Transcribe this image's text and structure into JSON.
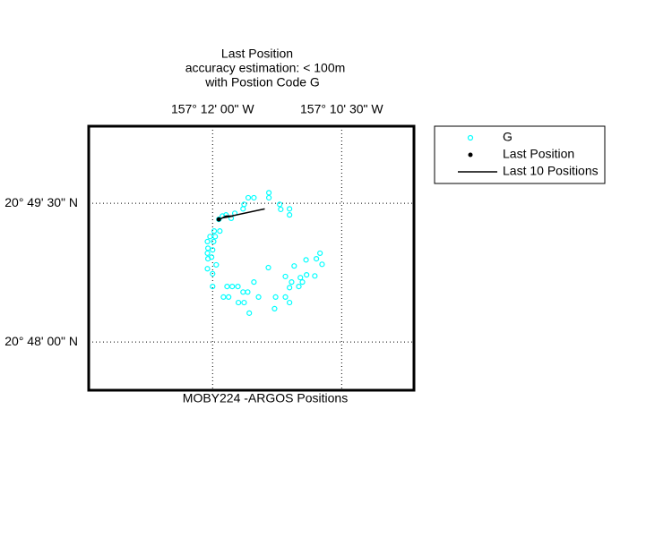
{
  "chart_data": {
    "type": "scatter",
    "title": [
      "Last Position",
      "accuracy estimation: < 100m",
      "with Postion Code G"
    ],
    "xlabel": "MOBY224 -ARGOS Positions",
    "xlim": [
      -157.224,
      -157.161
    ],
    "ylim": [
      20.7913,
      20.8389
    ],
    "xticks": [
      {
        "value": -157.2,
        "label": "157° 12' 00\" W"
      },
      {
        "value": -157.175,
        "label": "157° 10' 30\" W"
      }
    ],
    "yticks": [
      {
        "value": 20.825,
        "label": "20° 49' 30\" N"
      },
      {
        "value": 20.8,
        "label": "20° 48' 00\" N"
      }
    ],
    "grid": true,
    "legend": "outside-right",
    "series": [
      {
        "name": "G",
        "color": "#00ffff",
        "marker": "circle",
        "x": [
          -157.1891,
          -157.1891,
          -157.192,
          -157.1931,
          -157.1939,
          -157.1941,
          -157.187,
          -157.1868,
          -157.1851,
          -157.1851,
          -157.1957,
          -157.1964,
          -157.1974,
          -157.1981,
          -157.1988,
          -157.1997,
          -157.1986,
          -157.2005,
          -157.1995,
          -157.201,
          -157.1998,
          -157.2009,
          -157.2,
          -157.201,
          -157.2009,
          -157.2002,
          -157.1993,
          -157.201,
          -157.2,
          -157.2,
          -157.1972,
          -157.1962,
          -157.1951,
          -157.1941,
          -157.1932,
          -157.192,
          -157.1979,
          -157.1969,
          -157.195,
          -157.1939,
          -157.1911,
          -157.1929,
          -157.1878,
          -157.188,
          -157.1859,
          -157.1851,
          -157.1892,
          -157.1859,
          -157.1847,
          -157.1851,
          -157.1833,
          -157.1826,
          -157.1819,
          -157.1842,
          -157.183,
          -157.1818,
          -157.1802,
          -157.1799,
          -157.1792,
          -157.1788
        ],
        "y": [
          20.8269,
          20.826,
          20.826,
          20.826,
          20.8248,
          20.824,
          20.8248,
          20.8239,
          20.824,
          20.8229,
          20.8232,
          20.8223,
          20.8229,
          20.8227,
          20.8221,
          20.82,
          20.82,
          20.819,
          20.819,
          20.8181,
          20.8181,
          20.8169,
          20.8166,
          20.816,
          20.815,
          20.8153,
          20.8139,
          20.8132,
          20.8123,
          20.81,
          20.81,
          20.81,
          20.81,
          20.809,
          20.809,
          20.8108,
          20.8081,
          20.8081,
          20.8071,
          20.8071,
          20.8081,
          20.8052,
          20.8081,
          20.806,
          20.8081,
          20.8071,
          20.8134,
          20.8118,
          20.8108,
          20.8098,
          20.81,
          20.8108,
          20.8148,
          20.8137,
          20.8116,
          20.8121,
          20.8119,
          20.815,
          20.816,
          20.814
        ]
      },
      {
        "name": "Last Position",
        "color": "#000000",
        "marker": "dot",
        "x": [
          -157.1988
        ],
        "y": [
          20.8221
        ]
      },
      {
        "name": "Last 10 Positions",
        "color": "#000000",
        "marker": "line",
        "x": [
          -157.1991,
          -157.1974,
          -157.196,
          -157.1979,
          -157.1899
        ],
        "y": [
          20.8219,
          20.8227,
          20.8227,
          20.8224,
          20.824
        ]
      }
    ]
  }
}
